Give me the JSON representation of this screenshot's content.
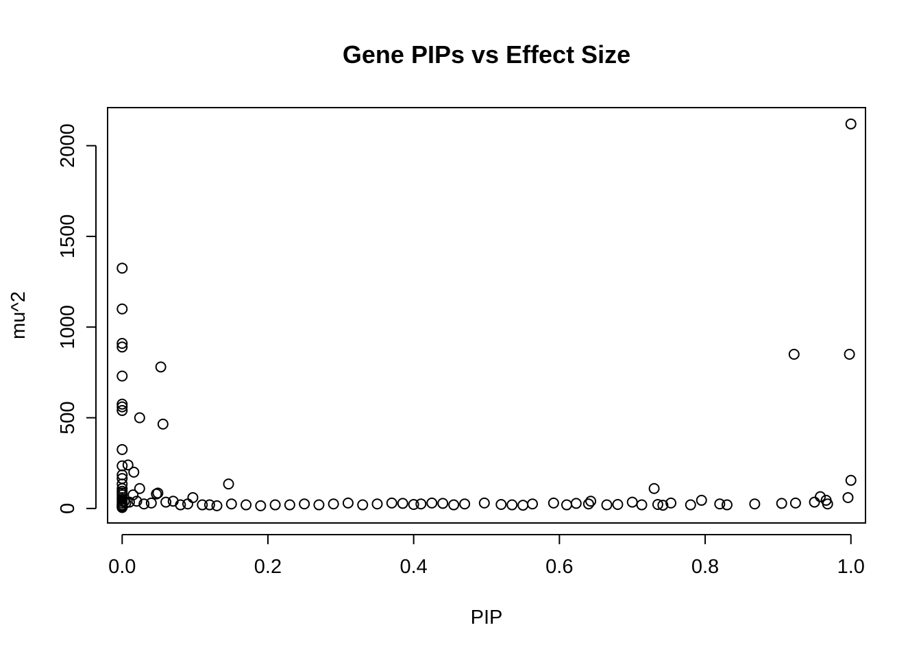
{
  "chart_data": {
    "type": "scatter",
    "title": "Gene PIPs vs Effect Size",
    "xlabel": "PIP",
    "ylabel": "mu^2",
    "xlim": [
      -0.02,
      1.02
    ],
    "ylim": [
      -80,
      2210
    ],
    "xticks": [
      0.0,
      0.2,
      0.4,
      0.6,
      0.8,
      1.0
    ],
    "xtick_labels": [
      "0.0",
      "0.2",
      "0.4",
      "0.6",
      "0.8",
      "1.0"
    ],
    "yticks": [
      0,
      500,
      1000,
      1500,
      2000
    ],
    "ytick_labels": [
      "0",
      "500",
      "1000",
      "1500",
      "2000"
    ],
    "grid": false,
    "legend": "none",
    "series": [
      {
        "name": "genes",
        "x": [
          1.0,
          0.0,
          0.0,
          0.0,
          0.0,
          0.0,
          0.053,
          0.922,
          0.998,
          0.0,
          0.0,
          0.0,
          0.024,
          0.056,
          0.0,
          0.0,
          0.008,
          0.016,
          0.0,
          0.0,
          0.146,
          1.0,
          0.0,
          0.0,
          0.024,
          0.0,
          0.0,
          0.0,
          0.015,
          0.047,
          0.049,
          0.73,
          0.097,
          0.996,
          0.958,
          0.966,
          0.0,
          0.0,
          0.0,
          0.0,
          0.0,
          0.0,
          0.0,
          0.0,
          0.003,
          0.005,
          0.01,
          0.02,
          0.03,
          0.04,
          0.06,
          0.07,
          0.08,
          0.09,
          0.11,
          0.12,
          0.13,
          0.15,
          0.17,
          0.19,
          0.21,
          0.23,
          0.25,
          0.27,
          0.29,
          0.31,
          0.33,
          0.35,
          0.37,
          0.385,
          0.4,
          0.41,
          0.425,
          0.44,
          0.455,
          0.47,
          0.497,
          0.52,
          0.535,
          0.55,
          0.563,
          0.592,
          0.61,
          0.623,
          0.64,
          0.643,
          0.665,
          0.68,
          0.7,
          0.713,
          0.735,
          0.742,
          0.753,
          0.78,
          0.795,
          0.82,
          0.83,
          0.868,
          0.905,
          0.924,
          0.95,
          0.968
        ],
        "y": [
          2120,
          1325,
          1100,
          910,
          890,
          730,
          780,
          850,
          850,
          575,
          560,
          540,
          500,
          465,
          325,
          235,
          240,
          200,
          185,
          165,
          135,
          155,
          135,
          110,
          110,
          95,
          85,
          75,
          75,
          80,
          85,
          110,
          60,
          60,
          65,
          45,
          60,
          50,
          40,
          30,
          20,
          15,
          10,
          5,
          40,
          30,
          35,
          40,
          25,
          30,
          35,
          40,
          20,
          25,
          20,
          20,
          15,
          25,
          20,
          15,
          20,
          20,
          25,
          20,
          25,
          30,
          20,
          25,
          30,
          28,
          22,
          25,
          30,
          28,
          20,
          25,
          30,
          22,
          20,
          18,
          25,
          30,
          20,
          28,
          25,
          40,
          20,
          22,
          35,
          20,
          22,
          18,
          30,
          20,
          45,
          25,
          20,
          25,
          28,
          30,
          35,
          25
        ]
      }
    ]
  }
}
